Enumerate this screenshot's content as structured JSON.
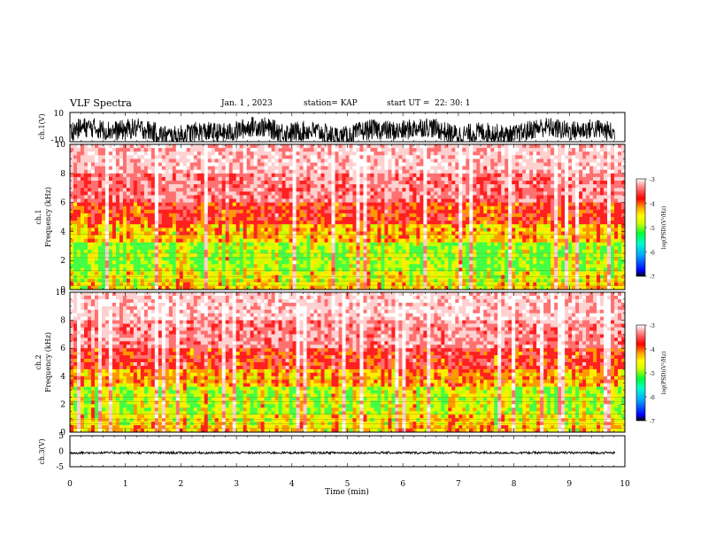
{
  "header": {
    "title": "VLF Spectra",
    "date": "Jan. 1 , 2023",
    "station": "station= KAP",
    "start": "start UT =  22: 30: 1"
  },
  "colors": {
    "palette": [
      "#ffffff",
      "#ffdddd",
      "#ff3a3a",
      "#ff0000",
      "#ffb000",
      "#ffff00",
      "#c8ff00",
      "#66ff33",
      "#00ff66",
      "#00ffcc",
      "#00aaff",
      "#0000ff",
      "#000000"
    ]
  },
  "chart_data": [
    {
      "type": "line",
      "panel": "ch1-waveform",
      "ylabel": "ch.1(V)",
      "ylim": [
        -10,
        10
      ],
      "yticks": [
        "10",
        "-10"
      ],
      "xlim": [
        0,
        10
      ],
      "series": [
        {
          "values_note_free": true,
          "envelope": {
            "min": -10,
            "max": 6
          }
        }
      ]
    },
    {
      "type": "heatmap",
      "panel": "ch1-spectrogram",
      "ylabel": "ch.1\nFrequency (kHz)",
      "ylim": [
        0,
        10
      ],
      "yticks": [
        "0",
        "2",
        "4",
        "6",
        "8",
        "10"
      ],
      "xlim": [
        0,
        10
      ],
      "zlabel": "log(PSD)(V²/Hz)",
      "zlim": [
        -7,
        -3
      ],
      "zticks": [
        "-3",
        "-4",
        "-5",
        "-6",
        "-7"
      ]
    },
    {
      "type": "heatmap",
      "panel": "ch2-spectrogram",
      "ylabel": "ch.2\nFrequency (kHz)",
      "ylim": [
        0,
        10
      ],
      "yticks": [
        "0",
        "2",
        "4",
        "6",
        "8",
        "10"
      ],
      "xlim": [
        0,
        10
      ],
      "zlabel": "log(PSD)(V²/Hz)",
      "zlim": [
        -7,
        -3
      ],
      "zticks": [
        "-3",
        "-4",
        "-5",
        "-6",
        "-7"
      ]
    },
    {
      "type": "line",
      "panel": "ch3-waveform",
      "ylabel": "ch.3(V)",
      "ylim": [
        -5,
        5
      ],
      "yticks": [
        "5",
        "0",
        "-5"
      ],
      "xlim": [
        0,
        10
      ],
      "series": [
        {
          "envelope": {
            "min": -0.8,
            "max": -0.2
          }
        }
      ]
    }
  ],
  "xaxis": {
    "label": "Time (min)",
    "ticks": [
      "0",
      "1",
      "2",
      "3",
      "4",
      "5",
      "6",
      "7",
      "8",
      "9",
      "10"
    ]
  }
}
